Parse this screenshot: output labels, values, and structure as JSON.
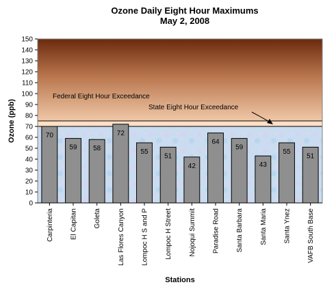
{
  "chart_data": {
    "type": "bar",
    "title": "Ozone Daily Eight Hour Maximums",
    "subtitle": "May 2, 2008",
    "xlabel": "Stations",
    "ylabel": "Ozone (ppb)",
    "ylim": [
      0,
      150
    ],
    "yticks": [
      0,
      10,
      20,
      30,
      40,
      50,
      60,
      70,
      80,
      90,
      100,
      110,
      120,
      130,
      140,
      150
    ],
    "categories": [
      "Carpinteria",
      "El Capitan",
      "Goleta",
      "Las Flores Canyon",
      "Lompoc H S and P",
      "Lompoc H Street",
      "Nojoqui Summit",
      "Paradise Road",
      "Santa Barbara",
      "Santa Maria",
      "Santa Ynez",
      "VAFB South Base"
    ],
    "values": [
      70,
      59,
      58,
      72,
      55,
      51,
      42,
      64,
      59,
      43,
      55,
      51
    ],
    "bar_color": "#8f8f8f",
    "thresholds": [
      {
        "name": "Federal Eight Hour Exceedance",
        "value": 75
      },
      {
        "name": "State Eight Hour Exceedance",
        "value": 70
      }
    ],
    "bands": {
      "clean_color": "#c9dcf0",
      "state_band_color": "#fde0c5",
      "exceed_top_color": "#6b2a0e",
      "exceed_bottom_color": "#f0c8a8"
    }
  }
}
